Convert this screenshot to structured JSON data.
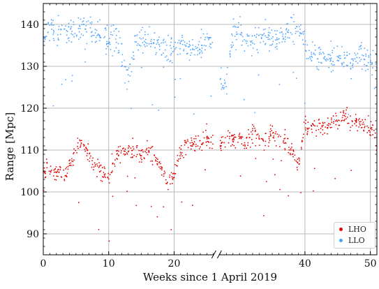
{
  "chart_data": {
    "type": "scatter",
    "xlabel": "Weeks since 1 April 2019",
    "ylabel": "Range [Mpc]",
    "xlim": [
      0,
      51
    ],
    "ylim": [
      85,
      145
    ],
    "xticks": [
      0,
      10,
      20,
      40,
      50
    ],
    "yticks": [
      90,
      100,
      110,
      120,
      130,
      140
    ],
    "grid": true,
    "legend_position": "bottom-right",
    "axis_break": {
      "between_weeks": [
        26,
        27
      ],
      "marker": "//"
    },
    "gap_weeks": [
      26,
      27
    ],
    "colors": {
      "LHO": "#e00000",
      "LLO": "#4da3ff"
    },
    "series": [
      {
        "name": "LHO",
        "x": [
          0,
          1,
          2,
          3,
          4,
          5,
          6,
          7,
          8,
          9,
          10,
          11,
          12,
          13,
          14,
          15,
          16,
          17,
          18,
          19,
          20,
          21,
          22,
          23,
          24,
          25,
          26,
          27,
          28,
          29,
          30,
          31,
          32,
          33,
          34,
          35,
          36,
          37,
          38,
          39,
          40,
          41,
          42,
          43,
          44,
          45,
          46,
          47,
          48,
          49,
          50,
          51
        ],
        "y": [
          105,
          106,
          105,
          104,
          106,
          110,
          112,
          108,
          106,
          105,
          103,
          108,
          110,
          109,
          110,
          109,
          110,
          108,
          106,
          102,
          104,
          110,
          112,
          111,
          112,
          113,
          112,
          111,
          112,
          113,
          113,
          112,
          114,
          113,
          112,
          114,
          113,
          112,
          110,
          106,
          116,
          115,
          116,
          116,
          117,
          117,
          118,
          117,
          117,
          116,
          115,
          113
        ]
      },
      {
        "name": "LLO",
        "x": [
          0,
          1,
          2,
          3,
          4,
          5,
          6,
          7,
          8,
          9,
          10,
          11,
          12,
          13,
          14,
          15,
          16,
          17,
          18,
          19,
          20,
          21,
          22,
          23,
          24,
          25,
          26,
          27,
          28,
          29,
          30,
          31,
          32,
          33,
          34,
          35,
          36,
          37,
          38,
          39,
          40,
          41,
          42,
          43,
          44,
          45,
          46,
          47,
          48,
          49,
          50,
          51
        ],
        "y": [
          138,
          139,
          138,
          139,
          138,
          139,
          140,
          139,
          138,
          137,
          136,
          137,
          133,
          126,
          135,
          136,
          137,
          136,
          135,
          134,
          135,
          136,
          135,
          134,
          135,
          136,
          135,
          126,
          125,
          137,
          138,
          137,
          136,
          137,
          138,
          136,
          137,
          138,
          139,
          138,
          137,
          133,
          132,
          131,
          132,
          133,
          132,
          131,
          132,
          133,
          132,
          130
        ]
      }
    ]
  }
}
